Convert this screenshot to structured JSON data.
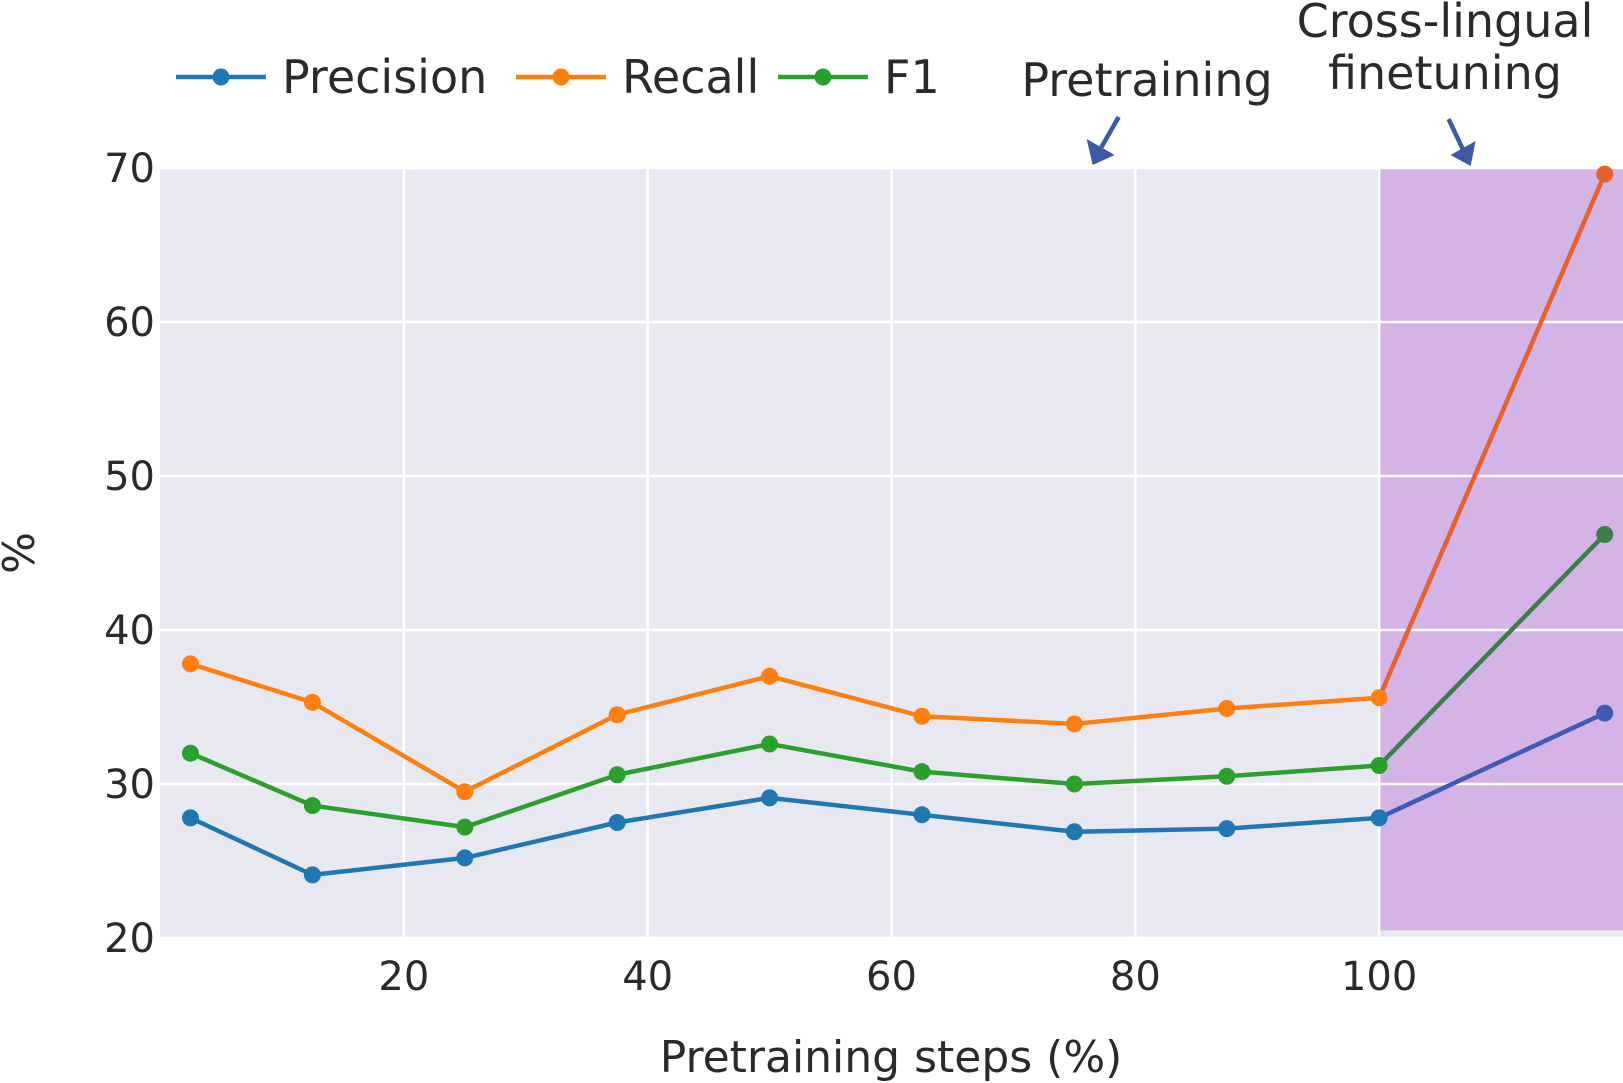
{
  "chart_data": {
    "type": "line",
    "title": "",
    "xlabel": "Pretraining steps (%)",
    "ylabel": "%",
    "xlim": [
      0,
      120
    ],
    "ylim": [
      20,
      70
    ],
    "xticks": [
      20,
      40,
      60,
      80,
      100
    ],
    "yticks": [
      20,
      30,
      40,
      50,
      60,
      70
    ],
    "grid": true,
    "legend_position": "top-left, above plot",
    "x": [
      2.5,
      12.5,
      25,
      37.5,
      50,
      62.5,
      75,
      87.5,
      100,
      118.5
    ],
    "series": [
      {
        "name": "Precision",
        "color": "#1f77b4",
        "finetune_color": "#3f5bb5",
        "values": [
          27.8,
          24.1,
          25.2,
          27.5,
          29.1,
          28.0,
          26.9,
          27.1,
          27.8,
          34.6
        ]
      },
      {
        "name": "Recall",
        "color": "#ff7f0e",
        "finetune_color": "#e8602c",
        "values": [
          37.8,
          35.3,
          29.5,
          34.5,
          37.0,
          34.4,
          33.9,
          34.9,
          35.6,
          69.6
        ]
      },
      {
        "name": "F1",
        "color": "#2ca02c",
        "finetune_color": "#3c7f46",
        "values": [
          32.0,
          28.6,
          27.2,
          30.6,
          32.6,
          30.8,
          30.0,
          30.5,
          31.2,
          46.2
        ]
      }
    ],
    "highlight_region": {
      "x_start": 100,
      "x_end": 120,
      "y_start": 20.5,
      "y_end": 70,
      "color": "#d4b3e6"
    },
    "plot_bg_color": "#e8e8f1",
    "arrow_color": "#3d5aa8",
    "annotations": [
      {
        "lines": [
          "Pretraining"
        ],
        "points_to_x": 76.5
      },
      {
        "lines": [
          "Cross-lingual",
          "finetuning"
        ],
        "points_to_x": 107.5
      }
    ]
  }
}
